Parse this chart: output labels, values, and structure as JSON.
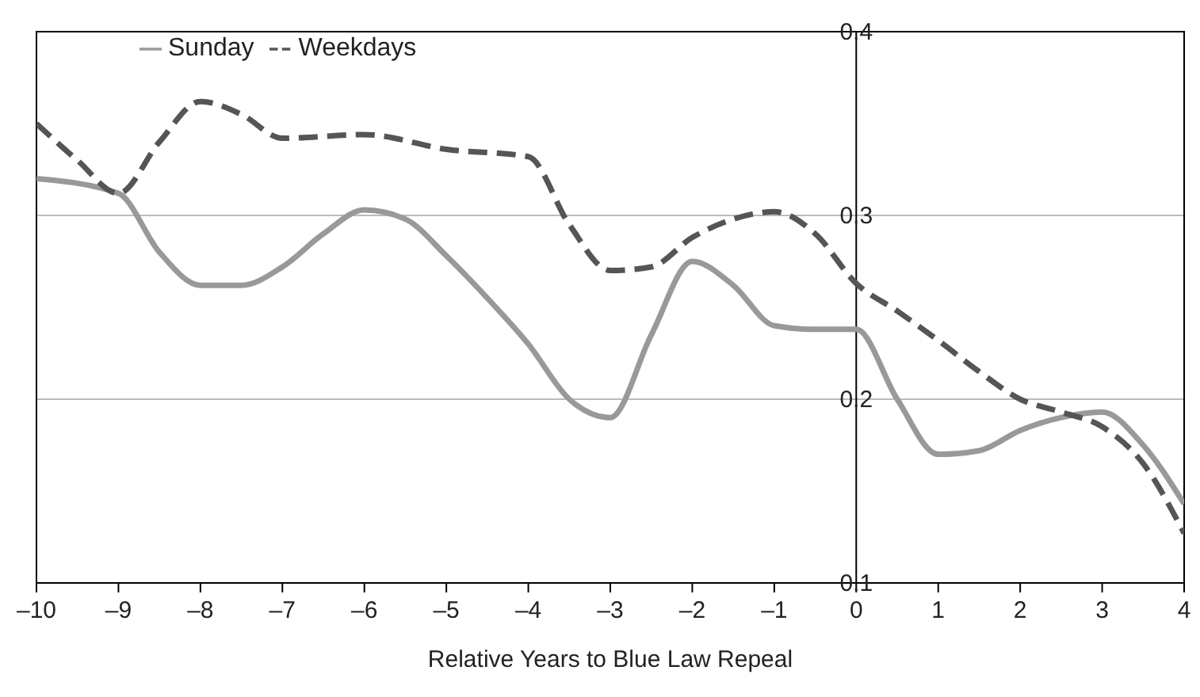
{
  "chart_data": {
    "type": "line",
    "xlabel": "Relative Years to Blue Law Repeal",
    "xlim": [
      -10,
      4
    ],
    "xticks": [
      {
        "value": -10,
        "label": "–10"
      },
      {
        "value": -9,
        "label": "–9"
      },
      {
        "value": -8,
        "label": "–8"
      },
      {
        "value": -7,
        "label": "–7"
      },
      {
        "value": -6,
        "label": "–6"
      },
      {
        "value": -5,
        "label": "–5"
      },
      {
        "value": -4,
        "label": "–4"
      },
      {
        "value": -3,
        "label": "–3"
      },
      {
        "value": -2,
        "label": "–2"
      },
      {
        "value": -1,
        "label": "–1"
      },
      0,
      1,
      2,
      3,
      4
    ],
    "ylim": [
      0.1,
      0.4
    ],
    "yticks": [
      0.1,
      0.2,
      0.3,
      0.4
    ],
    "grid": "y",
    "legend": "top left",
    "marker": "none",
    "series": [
      {
        "name": "Sunday",
        "color": "#999999",
        "line_style": "solid",
        "x": [
          -10,
          -9,
          -8.5,
          -8,
          -7.5,
          -7,
          -6.5,
          -6,
          -5.5,
          -5,
          -4.5,
          -4,
          -3.5,
          -3,
          -2.5,
          -2,
          -1.5,
          -1,
          -0.5,
          0,
          0.5,
          1,
          1.5,
          2,
          2.5,
          3,
          3.5,
          4
        ],
        "values": [
          0.32,
          0.312,
          0.28,
          0.262,
          0.262,
          0.272,
          0.29,
          0.303,
          0.298,
          0.278,
          0.255,
          0.23,
          0.2,
          0.19,
          0.235,
          0.275,
          0.262,
          0.24,
          0.238,
          0.238,
          0.2,
          0.17,
          0.172,
          0.183,
          0.19,
          0.193,
          0.175,
          0.143
        ]
      },
      {
        "name": "Weekdays",
        "color": "#555555",
        "line_style": "dashed",
        "x": [
          -10,
          -9.5,
          -9,
          -8.5,
          -8,
          -7.5,
          -7,
          -6,
          -5,
          -4,
          -3.5,
          -3,
          -2.5,
          -2,
          -1.5,
          -1,
          -0.5,
          0,
          0.5,
          1,
          1.5,
          2,
          2.5,
          3,
          3.5,
          4
        ],
        "values": [
          0.35,
          0.33,
          0.312,
          0.34,
          0.362,
          0.355,
          0.342,
          0.344,
          0.336,
          0.332,
          0.295,
          0.27,
          0.272,
          0.288,
          0.298,
          0.302,
          0.29,
          0.263,
          0.248,
          0.232,
          0.215,
          0.2,
          0.193,
          0.185,
          0.165,
          0.127
        ]
      }
    ]
  }
}
